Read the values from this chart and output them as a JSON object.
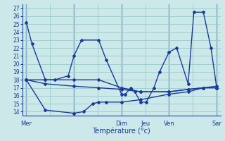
{
  "background_color": "#cce8e8",
  "grid_color": "#99cccc",
  "line_color": "#1a3a9a",
  "vline_color": "#2244aa",
  "title": "Température (°c)",
  "ylim": [
    13.5,
    27.5
  ],
  "yticks": [
    14,
    15,
    16,
    17,
    18,
    19,
    20,
    21,
    22,
    23,
    24,
    25,
    26,
    27
  ],
  "xlim": [
    -0.2,
    10.2
  ],
  "vline_positions": [
    0,
    2.5,
    5.0,
    7.5,
    10.0
  ],
  "day_labels": [
    {
      "text": "Mer",
      "x": 0.0
    },
    {
      "text": "Dim",
      "x": 5.0
    },
    {
      "text": "Jeu",
      "x": 6.25
    },
    {
      "text": "Ven",
      "x": 7.5
    },
    {
      "text": "Sar",
      "x": 10.0
    }
  ],
  "series": [
    {
      "x": [
        0.0,
        0.3,
        1.0,
        1.5,
        2.2,
        2.5,
        2.9,
        3.8,
        4.2,
        5.0,
        5.2,
        5.5,
        5.7,
        6.0,
        6.3,
        6.7,
        7.0,
        7.5,
        7.9,
        8.5,
        8.8,
        9.3,
        9.7,
        10.0
      ],
      "y": [
        25.2,
        22.5,
        18.0,
        18.0,
        18.5,
        21.0,
        23.0,
        23.0,
        20.5,
        16.2,
        16.2,
        17.0,
        16.5,
        15.2,
        15.2,
        17.0,
        19.0,
        21.5,
        22.0,
        17.5,
        26.5,
        26.5,
        22.0,
        17.0
      ]
    },
    {
      "x": [
        0.0,
        1.0,
        2.5,
        3.8,
        5.0,
        6.0,
        7.5,
        8.5,
        9.3,
        10.0
      ],
      "y": [
        18.0,
        18.0,
        18.0,
        18.0,
        17.0,
        16.5,
        16.5,
        16.8,
        17.0,
        17.0
      ]
    },
    {
      "x": [
        0.0,
        1.0,
        2.5,
        3.0,
        3.5,
        3.8,
        4.2,
        5.0,
        6.0,
        7.5,
        8.5,
        9.3,
        10.0
      ],
      "y": [
        18.0,
        14.2,
        13.8,
        14.0,
        15.0,
        15.2,
        15.2,
        15.2,
        15.5,
        16.2,
        16.5,
        17.0,
        17.0
      ]
    },
    {
      "x": [
        0.0,
        1.0,
        2.5,
        3.8,
        5.0,
        6.0,
        7.5,
        8.5,
        9.3,
        10.0
      ],
      "y": [
        18.0,
        17.5,
        17.2,
        17.0,
        16.8,
        16.5,
        16.5,
        16.8,
        17.0,
        17.2
      ]
    }
  ]
}
